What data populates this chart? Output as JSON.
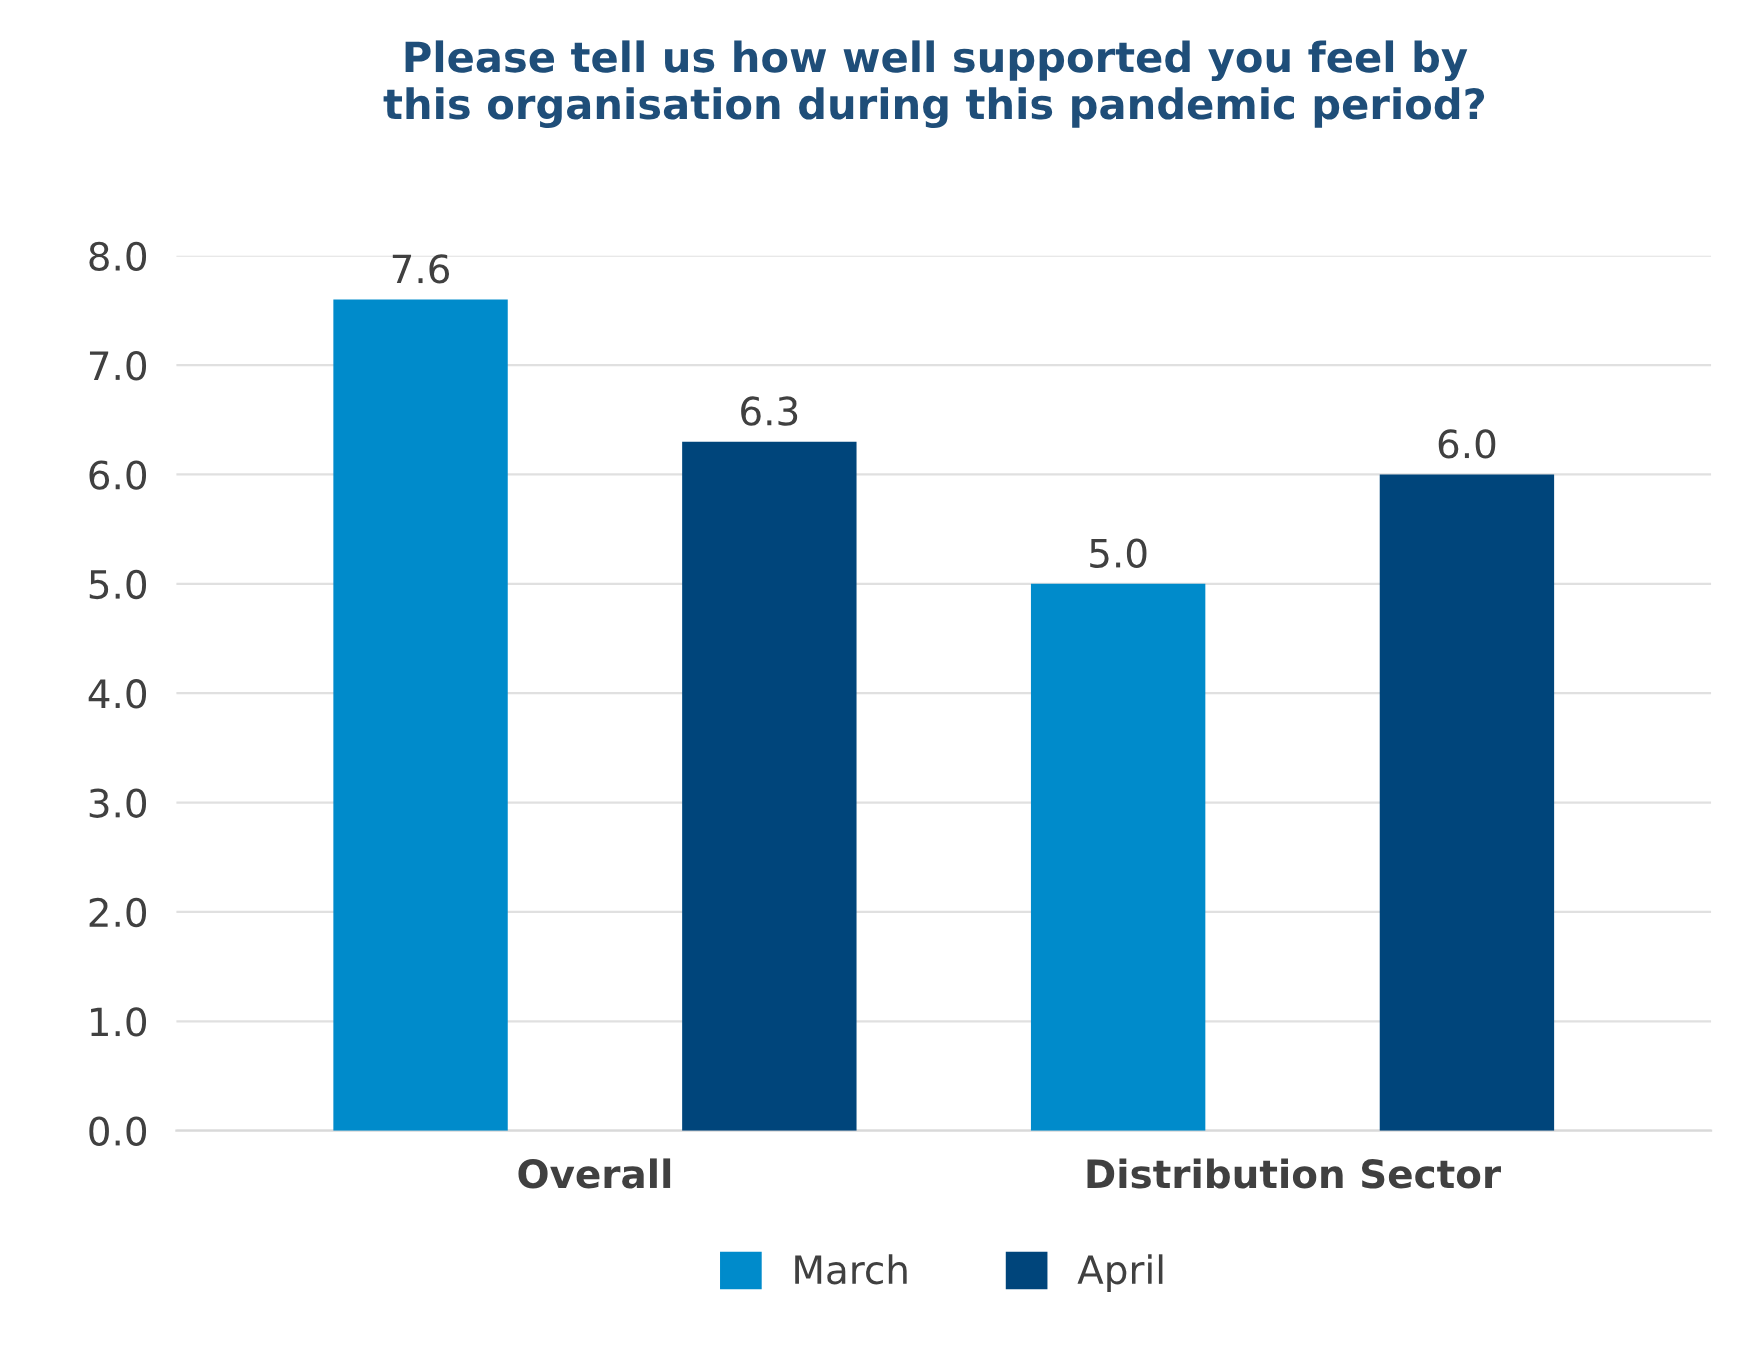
{
  "chart_data": {
    "type": "bar",
    "title": "Please tell us how well supported you feel by\nthis organisation during this pandemic period?",
    "categories": [
      "Overall",
      "Distribution Sector"
    ],
    "series": [
      {
        "name": "March",
        "color": "#008bcb",
        "values": [
          7.6,
          5.0
        ],
        "value_labels": [
          "7.6",
          "5.0"
        ]
      },
      {
        "name": "April",
        "color": "#00457b",
        "values": [
          6.3,
          6.0
        ],
        "value_labels": [
          "6.3",
          "6.0"
        ]
      }
    ],
    "ylim": [
      0,
      8
    ],
    "yticks": [
      {
        "value": 0,
        "label": "0.0"
      },
      {
        "value": 1,
        "label": "1.0"
      },
      {
        "value": 2,
        "label": "2.0"
      },
      {
        "value": 3,
        "label": "3.0"
      },
      {
        "value": 4,
        "label": "4.0"
      },
      {
        "value": 5,
        "label": "5.0"
      },
      {
        "value": 6,
        "label": "6.0"
      },
      {
        "value": 7,
        "label": "7.0"
      },
      {
        "value": 8,
        "label": "8.0"
      }
    ],
    "grid": "y",
    "legend": "bottom"
  }
}
